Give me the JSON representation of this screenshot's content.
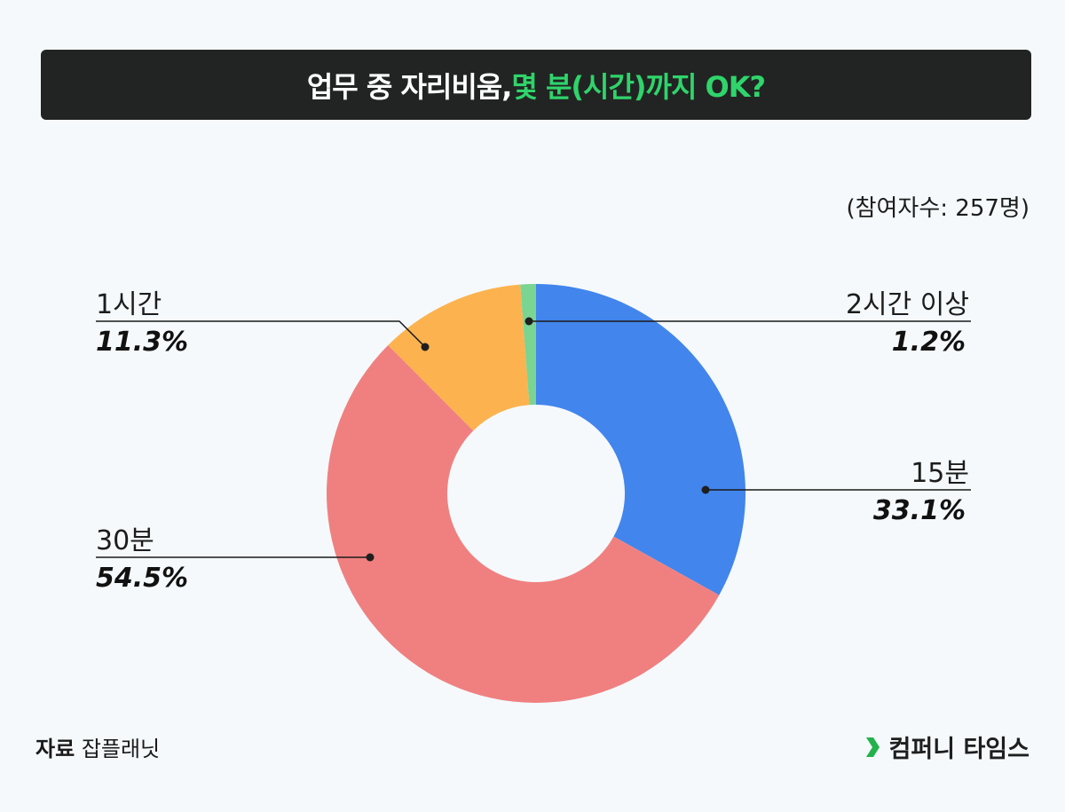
{
  "header": {
    "title_part1": "업무 중 자리비움, ",
    "title_part2": "몇 분(시간)까지 OK?",
    "title_highlight_color": "#2fd46b"
  },
  "participants": "(참여자수: 257명)",
  "labels": {
    "min15": {
      "label": "15분",
      "pct": "33.1%"
    },
    "min30": {
      "label": "30분",
      "pct": "54.5%"
    },
    "hour1": {
      "label": "1시간",
      "pct": "11.3%"
    },
    "hour2plus": {
      "label": "2시간 이상",
      "pct": "1.2%"
    }
  },
  "footer": {
    "source_label": "자료",
    "source_value": "잡플래닛",
    "brand_name": "컴퍼니 타임스",
    "brand_icon": "chevron-right-icon",
    "brand_color": "#22b24c"
  },
  "chart_data": {
    "type": "pie",
    "subtype": "donut",
    "title": "업무 중 자리비움, 몇 분(시간)까지 OK?",
    "subtitle": "(참여자수: 257명)",
    "categories": [
      "15분",
      "30분",
      "1시간",
      "2시간 이상"
    ],
    "values": [
      33.1,
      54.5,
      11.3,
      1.2
    ],
    "unit": "%",
    "colors": [
      "#4285ec",
      "#f08080",
      "#fcb34f",
      "#7ad492"
    ],
    "start_angle": "12 o'clock",
    "direction": "clockwise",
    "source": "잡플래닛",
    "n": 257
  }
}
